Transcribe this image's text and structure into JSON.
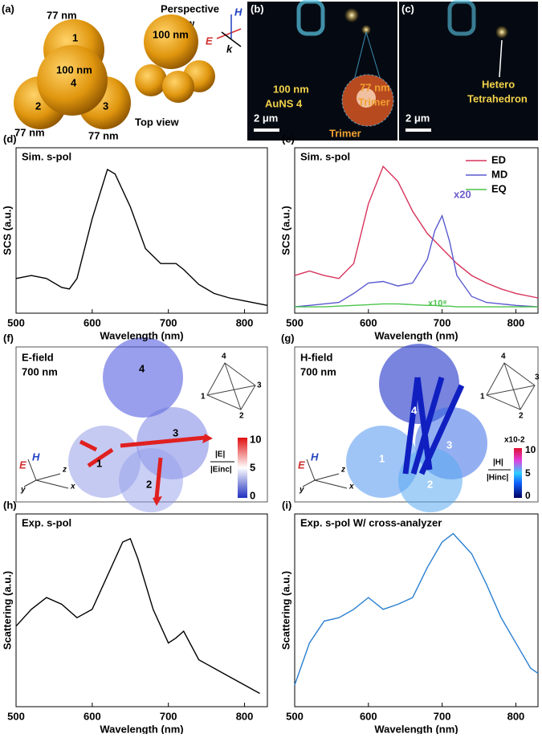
{
  "panels": {
    "a": {
      "label": "(a)",
      "texts": [
        "77 nm",
        "1",
        "100 nm",
        "4",
        "2",
        "3",
        "77 nm",
        "77 nm",
        "Perspective",
        "view",
        "Top view",
        "100 nm",
        "E",
        "H",
        "k"
      ]
    },
    "b": {
      "label": "(b)",
      "texts": [
        "100 nm",
        "AuNS 4",
        "77 nm",
        "Trimer",
        "Trimer",
        "2 μm"
      ]
    },
    "c": {
      "label": "(c)",
      "texts": [
        "Hetero",
        "Tetrahedron",
        "2 μm"
      ]
    },
    "f": {
      "label": "(f)",
      "texts": [
        "E-field",
        "700 nm",
        "4",
        "1",
        "3",
        "2",
        "4",
        "1",
        "3",
        "2",
        "10",
        "5",
        "0",
        "|E|",
        "|Einc|",
        "E",
        "H",
        "z",
        "y",
        "x"
      ]
    },
    "g": {
      "label": "(g)",
      "texts": [
        "H-field",
        "700 nm",
        "4",
        "1",
        "3",
        "2",
        "4",
        "1",
        "3",
        "2",
        "x10-2",
        "10",
        "5",
        "0",
        "|H|",
        "|Hinc|",
        "E",
        "H",
        "z",
        "y",
        "x"
      ]
    }
  },
  "chart_data": [
    {
      "type": "line",
      "panel_label": "(d)",
      "title": "Sim. s-pol",
      "xlabel": "Wavelength (nm)",
      "ylabel": "SCS (a.u.)",
      "x": [
        500,
        520,
        540,
        560,
        570,
        580,
        600,
        620,
        630,
        650,
        670,
        690,
        710,
        720,
        740,
        760,
        780,
        800,
        830
      ],
      "series": [
        {
          "name": "SCS",
          "color": "#000000",
          "values": [
            0.2,
            0.22,
            0.2,
            0.14,
            0.13,
            0.2,
            0.6,
            0.93,
            0.9,
            0.68,
            0.4,
            0.3,
            0.3,
            0.26,
            0.16,
            0.1,
            0.07,
            0.05,
            0.02
          ]
        }
      ],
      "xlim": [
        500,
        830
      ],
      "ylim": [
        0,
        1
      ],
      "xticks": [
        500,
        600,
        700,
        800
      ]
    },
    {
      "type": "line",
      "panel_label": "(e)",
      "title": "Sim. s-pol",
      "xlabel": "Wavelength (nm)",
      "ylabel": "SCS (a.u.)",
      "x": [
        500,
        520,
        540,
        560,
        580,
        600,
        620,
        640,
        660,
        680,
        690,
        700,
        710,
        720,
        740,
        760,
        780,
        800,
        830
      ],
      "series": [
        {
          "name": "ED",
          "color": "#d6335a",
          "values": [
            0.22,
            0.25,
            0.22,
            0.2,
            0.3,
            0.7,
            0.95,
            0.85,
            0.65,
            0.5,
            0.45,
            0.4,
            0.35,
            0.3,
            0.22,
            0.17,
            0.13,
            0.1,
            0.07
          ]
        },
        {
          "name": "MD",
          "color": "#5a5ad0",
          "values": [
            0.01,
            0.02,
            0.03,
            0.04,
            0.1,
            0.17,
            0.18,
            0.15,
            0.17,
            0.33,
            0.52,
            0.62,
            0.45,
            0.22,
            0.08,
            0.04,
            0.03,
            0.02,
            0.01
          ]
        },
        {
          "name": "EQ",
          "color": "#4cc44c",
          "values": [
            0.01,
            0.01,
            0.01,
            0.015,
            0.02,
            0.025,
            0.03,
            0.03,
            0.025,
            0.02,
            0.02,
            0.015,
            0.015,
            0.01,
            0.01,
            0.01,
            0.01,
            0.01,
            0.01
          ]
        }
      ],
      "annotations": [
        "x20",
        "x10⁸"
      ],
      "xlim": [
        500,
        830
      ],
      "ylim": [
        0,
        1
      ],
      "xticks": [
        500,
        600,
        700,
        800
      ]
    },
    {
      "type": "line",
      "panel_label": "(h)",
      "title": "Exp. s-pol",
      "xlabel": "Wavelength (nm)",
      "ylabel": "Scattering (a.u.)",
      "x": [
        500,
        520,
        540,
        560,
        580,
        600,
        620,
        640,
        650,
        660,
        680,
        700,
        710,
        720,
        740,
        760,
        780,
        800,
        820
      ],
      "series": [
        {
          "name": "Scattering",
          "color": "#000000",
          "values": [
            0.45,
            0.55,
            0.62,
            0.58,
            0.5,
            0.55,
            0.75,
            0.95,
            0.97,
            0.85,
            0.55,
            0.35,
            0.38,
            0.42,
            0.25,
            0.2,
            0.15,
            0.1,
            0.05
          ]
        }
      ],
      "xlim": [
        500,
        830
      ],
      "ylim": [
        0,
        1.05
      ],
      "xticks": [
        500,
        600,
        700,
        800
      ]
    },
    {
      "type": "line",
      "panel_label": "(i)",
      "title": "Exp. s-pol W/ cross-analyzer",
      "xlabel": "Wavelength (nm)",
      "ylabel": "Scattering (a.u.)",
      "x": [
        500,
        520,
        540,
        560,
        580,
        600,
        620,
        640,
        660,
        680,
        700,
        715,
        740,
        760,
        780,
        800,
        820,
        830
      ],
      "series": [
        {
          "name": "Scattering",
          "color": "#2a7fd0",
          "values": [
            0.1,
            0.35,
            0.48,
            0.5,
            0.55,
            0.62,
            0.55,
            0.58,
            0.62,
            0.8,
            0.95,
            1.0,
            0.88,
            0.7,
            0.5,
            0.35,
            0.2,
            0.17
          ]
        }
      ],
      "xlim": [
        500,
        830
      ],
      "ylim": [
        0,
        1.05
      ],
      "xticks": [
        500,
        600,
        700,
        800
      ]
    }
  ]
}
